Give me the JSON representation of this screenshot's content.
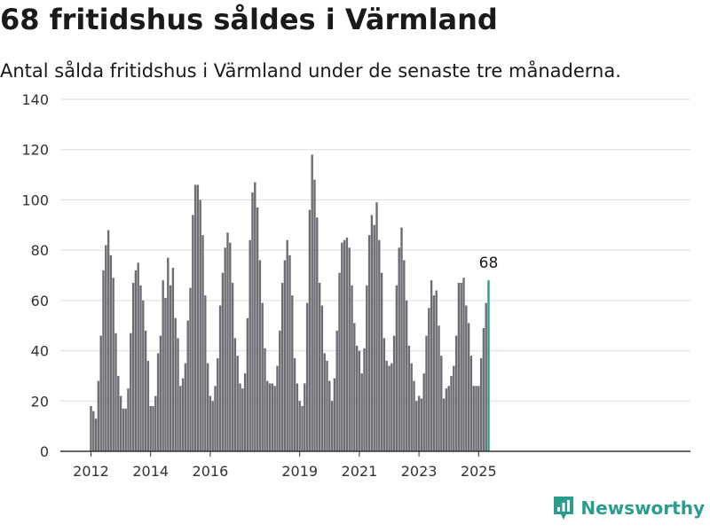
{
  "title": "68 fritidshus såldes i Värmland",
  "subtitle": "Antal sålda fritidshus i Värmland under de senaste tre månaderna.",
  "brand": {
    "name": "Newsworthy",
    "color": "#2a9d8f"
  },
  "colors": {
    "bar": "#6e6d74",
    "highlight": "#2a9d8f",
    "grid": "#dddddd",
    "axis": "#333333"
  },
  "chart_data": {
    "type": "bar",
    "x_start": "2012-01",
    "x_step": "month",
    "ylim": [
      0,
      140
    ],
    "yticks": [
      0,
      20,
      40,
      60,
      80,
      100,
      120,
      140
    ],
    "xticks": [
      "2012",
      "2014",
      "2016",
      "2019",
      "2021",
      "2023",
      "2025"
    ],
    "grid": true,
    "values": [
      18,
      16,
      13,
      28,
      46,
      72,
      82,
      88,
      78,
      69,
      47,
      30,
      22,
      17,
      17,
      25,
      47,
      67,
      72,
      75,
      66,
      60,
      48,
      36,
      18,
      18,
      22,
      39,
      46,
      68,
      61,
      77,
      66,
      73,
      53,
      45,
      26,
      29,
      35,
      52,
      65,
      94,
      106,
      106,
      100,
      86,
      62,
      35,
      22,
      20,
      26,
      37,
      58,
      71,
      81,
      87,
      83,
      67,
      45,
      38,
      27,
      25,
      31,
      53,
      84,
      103,
      107,
      97,
      76,
      59,
      41,
      28,
      27,
      27,
      26,
      34,
      48,
      67,
      76,
      84,
      78,
      62,
      37,
      27,
      20,
      18,
      27,
      59,
      96,
      118,
      108,
      93,
      67,
      58,
      39,
      36,
      28,
      20,
      29,
      48,
      71,
      83,
      84,
      85,
      81,
      66,
      51,
      42,
      40,
      31,
      41,
      66,
      86,
      94,
      90,
      99,
      84,
      71,
      45,
      36,
      34,
      35,
      46,
      66,
      81,
      89,
      76,
      60,
      42,
      35,
      28,
      20,
      22,
      21,
      31,
      46,
      57,
      68,
      62,
      64,
      50,
      38,
      21,
      25,
      26,
      30,
      34,
      46,
      67,
      67,
      69,
      58,
      51,
      38,
      26,
      26,
      26,
      37,
      49,
      59,
      68
    ],
    "annotation": {
      "label": "68",
      "value": 68
    }
  }
}
